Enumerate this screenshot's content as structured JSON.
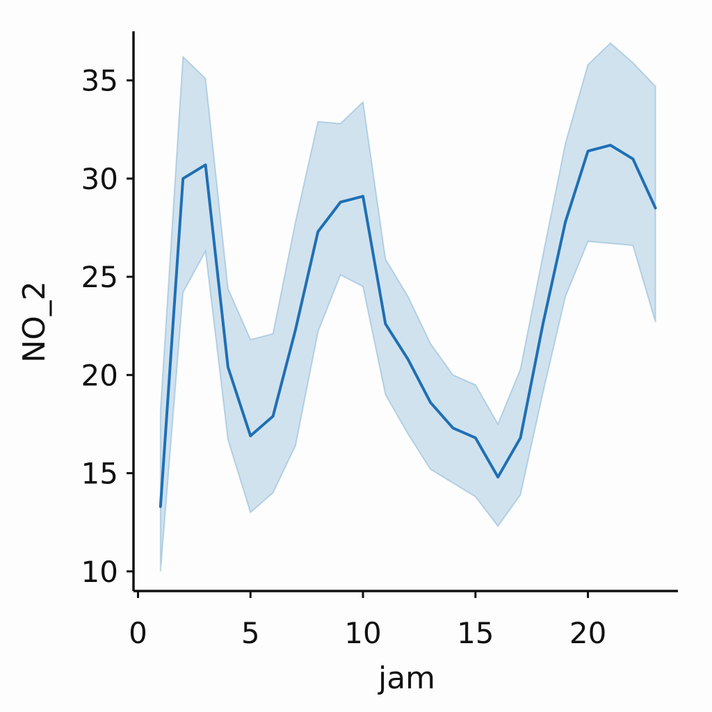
{
  "chart_data": {
    "type": "line",
    "xlabel": "jam",
    "ylabel": "NO_2",
    "xlim": [
      -0.2,
      24
    ],
    "ylim": [
      9.0,
      37.5
    ],
    "x_ticks": [
      0,
      5,
      10,
      15,
      20
    ],
    "y_ticks": [
      10,
      15,
      20,
      25,
      30,
      35
    ],
    "grid": false,
    "legend": "none",
    "line_color": "#1f6fb4",
    "band_color": "#1f77b4",
    "series": [
      {
        "x": [
          1,
          2,
          3,
          4,
          5,
          6,
          7,
          8,
          9,
          10,
          11,
          12,
          13,
          14,
          15,
          16,
          17,
          18,
          19,
          20,
          21,
          22,
          23
        ],
        "values": [
          13.3,
          30.0,
          30.7,
          20.4,
          16.9,
          17.9,
          22.3,
          27.3,
          28.8,
          29.1,
          22.6,
          20.8,
          18.6,
          17.3,
          16.8,
          14.8,
          16.8,
          22.6,
          27.8,
          31.4,
          31.7,
          31.0,
          28.5
        ],
        "ci_low": [
          10.0,
          24.2,
          26.3,
          16.7,
          13.0,
          14.0,
          16.4,
          22.2,
          25.1,
          24.5,
          19.0,
          17.0,
          15.2,
          14.5,
          13.8,
          12.3,
          13.9,
          19.1,
          24.0,
          26.8,
          26.7,
          26.6,
          22.7
        ],
        "ci_high": [
          18.2,
          36.2,
          35.1,
          24.4,
          21.8,
          22.1,
          27.8,
          32.9,
          32.8,
          33.9,
          25.9,
          24.0,
          21.6,
          20.0,
          19.5,
          17.5,
          20.3,
          26.1,
          31.8,
          35.8,
          36.9,
          35.9,
          34.7
        ]
      }
    ]
  }
}
